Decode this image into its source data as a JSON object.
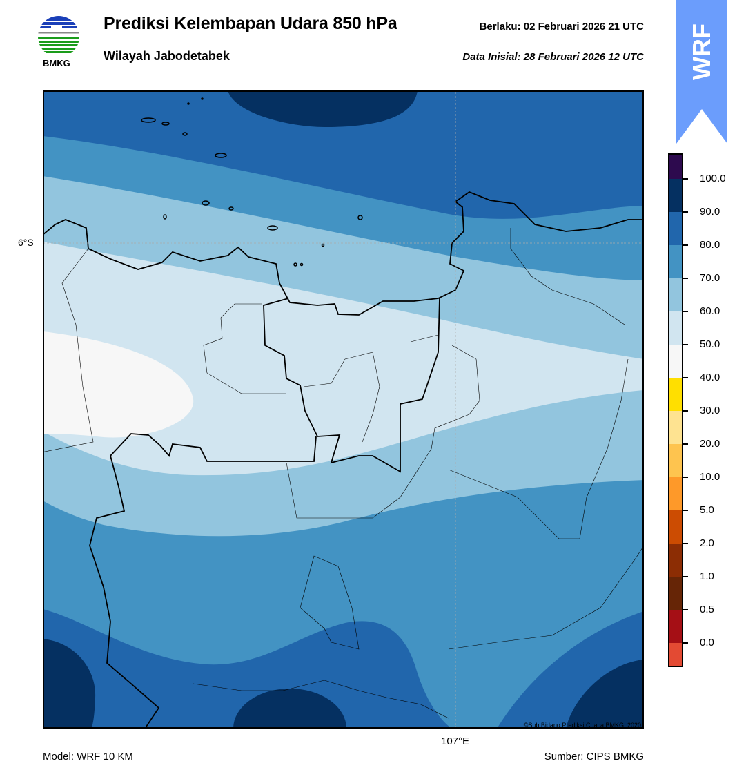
{
  "header": {
    "title": "Prediksi Kelembapan Udara 850 hPa",
    "subtitle": "Wilayah Jabodetabek",
    "valid": "Berlaku:  02 Februari 2026 21 UTC",
    "initial": "Data Inisial:  28 Februari 2026 12 UTC",
    "logo_text": "BMKG",
    "badge": "WRF"
  },
  "map": {
    "lat_label": "6°S",
    "lon_label": "107°E",
    "credit": "©Sub Bidang Prediksi Cuaca BMKG, 2020"
  },
  "footer": {
    "model": "Model: WRF 10 KM",
    "source": "Sumber: CIPS BMKG"
  },
  "colorbar": {
    "labels": [
      "100.0",
      "90.0",
      "80.0",
      "70.0",
      "60.0",
      "50.0",
      "40.0",
      "30.0",
      "20.0",
      "10.0",
      "5.0",
      "2.0",
      "1.0",
      "0.5",
      "0.0"
    ],
    "colors": [
      "#2d0a4e",
      "#053061",
      "#2166ac",
      "#4393c3",
      "#92c5de",
      "#d1e5f0",
      "#f7f7f7",
      "#ffdf00",
      "#fee391",
      "#fec44f",
      "#fe9929",
      "#cc4c02",
      "#8c2d04",
      "#662506",
      "#a50f15",
      "#e34a33"
    ]
  },
  "colors": {
    "band_90_100": "#053061",
    "band_80_90": "#2166ac",
    "band_70_80": "#4393c3",
    "band_60_70": "#92c5de",
    "band_50_60": "#d1e5f0",
    "band_40_50": "#f7f7f7",
    "badge": "#6b9dfc"
  }
}
